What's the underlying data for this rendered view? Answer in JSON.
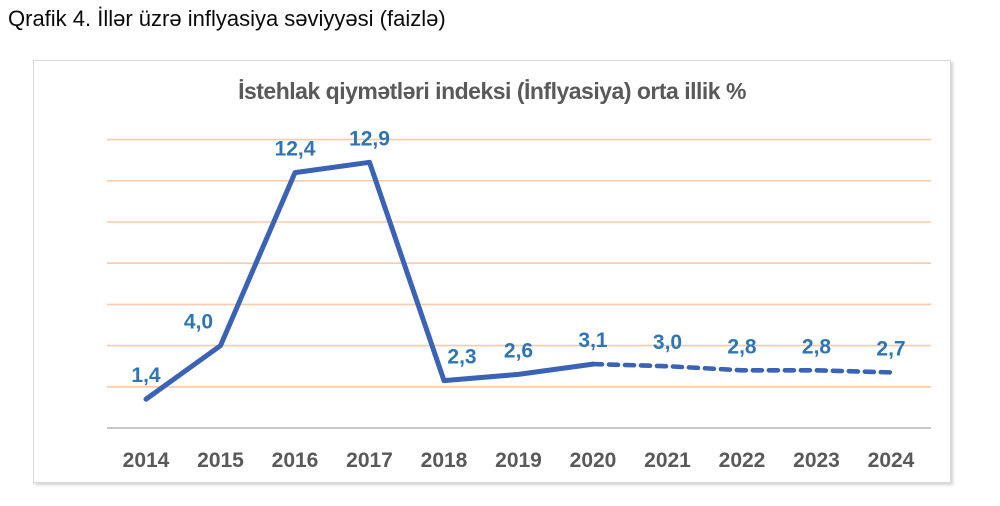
{
  "page": {
    "heading": "Qrafik 4. İllər üzrə inflyasiya səviyyəsi (faizlə)"
  },
  "chart_data": {
    "type": "line",
    "title": "İstehlak qiymətləri indeksi (İnflyasiya) orta illik %",
    "categories": [
      "2014",
      "2015",
      "2016",
      "2017",
      "2018",
      "2019",
      "2020",
      "2021",
      "2022",
      "2023",
      "2024"
    ],
    "values": [
      1.4,
      4.0,
      12.4,
      12.9,
      2.3,
      2.6,
      3.1,
      3.0,
      2.8,
      2.8,
      2.7
    ],
    "value_labels": [
      "1,4",
      "4,0",
      "12,4",
      "12,9",
      "2,3",
      "2,6",
      "3,1",
      "3,0",
      "2,8",
      "2,8",
      "2,7"
    ],
    "solid_through_index": 6,
    "solid_through_category": "2020",
    "ylim": [
      0,
      14
    ],
    "grid_step": 2,
    "grid": true,
    "legend": "none",
    "xlabel": "",
    "ylabel": "",
    "colors": {
      "line": "#3a62b5",
      "data_label": "#2e75b6",
      "gridline": "#f8cbad",
      "axis": "#bfbfbf",
      "title": "#595959",
      "tick": "#595959"
    }
  }
}
